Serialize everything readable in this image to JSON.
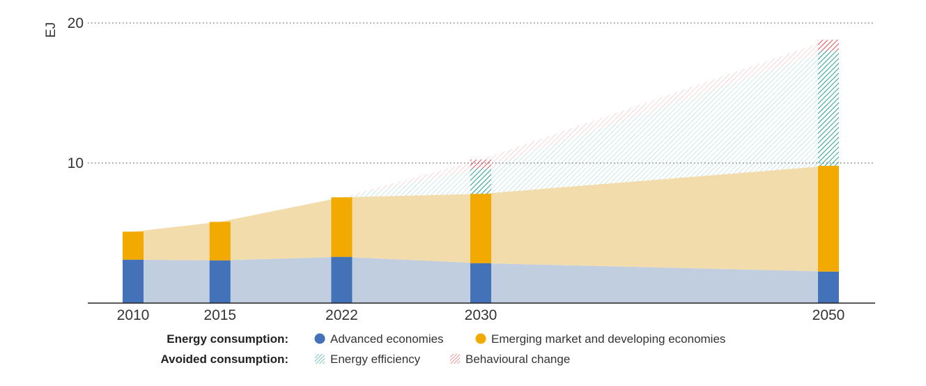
{
  "chart_data": {
    "type": "area",
    "ylabel": "EJ",
    "ylim": [
      0,
      20
    ],
    "yticks": [
      10,
      20
    ],
    "x": [
      2010,
      2015,
      2022,
      2030,
      2050
    ],
    "xtick_labels": [
      "2010",
      "2015",
      "2022",
      "2030",
      "2050"
    ],
    "grid": "dotted horizontal lines at labelled ticks",
    "bars_at_years": true,
    "series": [
      {
        "name": "Advanced economies",
        "group": "energy_consumption",
        "values": [
          3.1,
          3.05,
          3.3,
          2.85,
          2.25
        ],
        "color": "#4472b8",
        "fill_color": "#c0cee0"
      },
      {
        "name": "Emerging market and developing economies",
        "group": "energy_consumption",
        "values": [
          2.0,
          2.75,
          4.25,
          4.95,
          7.55
        ],
        "color": "#f2a900",
        "fill_color": "#f2dcab"
      },
      {
        "name": "Energy efficiency",
        "group": "avoided_consumption",
        "values": [
          0,
          0,
          0,
          1.8,
          8.2
        ],
        "color": "#2aa197",
        "pattern": "hatch"
      },
      {
        "name": "Behavioural change",
        "group": "avoided_consumption",
        "values": [
          0,
          0,
          0,
          0.65,
          0.8
        ],
        "color": "#e0555a",
        "pattern": "hatch"
      }
    ],
    "legend": {
      "placement": "bottom",
      "rows": [
        {
          "title": "Energy consumption:",
          "items": [
            "Advanced economies",
            "Emerging market and developing economies"
          ]
        },
        {
          "title": "Avoided consumption:",
          "items": [
            "Energy efficiency",
            "Behavioural change"
          ]
        }
      ]
    }
  }
}
